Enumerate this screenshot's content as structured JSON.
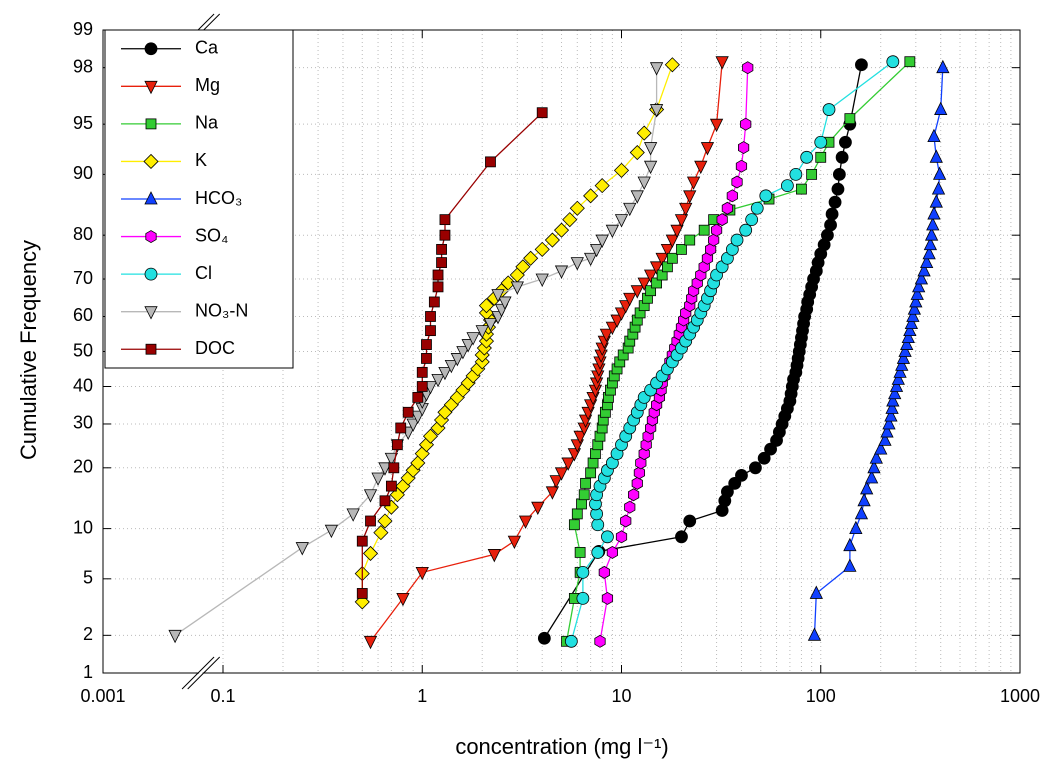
{
  "chart_data": {
    "type": "probability",
    "x_label": "concentration (mg l⁻¹)",
    "y_label": "Cumulative Frequency",
    "xlim": [
      0.001,
      1000
    ],
    "xbreak": [
      0.003,
      0.08
    ],
    "xscale": "log",
    "xticks": [
      0.001,
      0.1,
      1,
      10,
      100,
      1000
    ],
    "ylim": [
      1,
      99
    ],
    "yscale": "probability",
    "yticks": [
      1,
      2,
      5,
      10,
      20,
      30,
      40,
      50,
      60,
      70,
      80,
      90,
      95,
      98,
      99
    ],
    "grid": true,
    "legend": "upper left",
    "series": [
      {
        "name": "Ca",
        "color": "#000000",
        "marker": "circle",
        "x": [
          4.1,
          7.7,
          20,
          22,
          32,
          33,
          34,
          37,
          40,
          47,
          52,
          56,
          60,
          62,
          64,
          66,
          68,
          70,
          71,
          72,
          73,
          75,
          76,
          77,
          78,
          79,
          80,
          81,
          82,
          83,
          85,
          86,
          88,
          90,
          92,
          95,
          97,
          100,
          104,
          108,
          112,
          114,
          118,
          122,
          124,
          128,
          133,
          140,
          160
        ],
        "values": [
          1.9,
          7.4,
          9,
          11,
          12.5,
          14,
          15.5,
          17,
          18.5,
          20,
          22,
          24,
          26,
          28,
          30,
          32,
          34,
          36,
          38,
          40,
          42,
          44,
          46,
          48,
          50,
          52,
          54,
          56,
          58,
          60,
          62,
          64,
          66,
          68,
          70,
          72,
          74,
          76,
          78,
          80,
          82,
          84,
          86,
          88,
          90,
          92,
          93.5,
          95,
          98.1
        ]
      },
      {
        "name": "Mg",
        "color": "#e8200c",
        "marker": "triangle-down",
        "x": [
          0.55,
          0.8,
          1.0,
          2.3,
          2.9,
          3.3,
          3.8,
          4.5,
          4.7,
          5.0,
          5.4,
          5.8,
          6.0,
          6.2,
          6.5,
          6.6,
          6.8,
          7.0,
          7.2,
          7.4,
          7.5,
          7.6,
          7.7,
          7.8,
          7.9,
          8.0,
          8.2,
          8.4,
          9.0,
          9.5,
          10.0,
          10.5,
          11,
          12,
          13,
          14,
          15,
          16,
          17,
          18,
          19,
          20,
          21,
          22,
          23,
          25,
          27,
          30,
          32
        ],
        "values": [
          1.8,
          3.7,
          5.5,
          7.1,
          8.5,
          11,
          13,
          15.5,
          17.5,
          19,
          21,
          23,
          25,
          27,
          29,
          31,
          33,
          35,
          37,
          39,
          41,
          43,
          45,
          47,
          49,
          51,
          53,
          55,
          57,
          59,
          61,
          63,
          65,
          67,
          69,
          71,
          73,
          75,
          77,
          79,
          81,
          83,
          85,
          87,
          89,
          91,
          93,
          95,
          98.2
        ]
      },
      {
        "name": "Na",
        "color": "#33cc33",
        "marker": "square",
        "x": [
          5.3,
          5.8,
          6.2,
          6.2,
          5.8,
          6.0,
          6.3,
          6.5,
          6.6,
          7.0,
          7.2,
          7.4,
          7.6,
          7.8,
          8.0,
          8.1,
          8.3,
          8.5,
          8.6,
          8.8,
          9.0,
          9.2,
          9.5,
          9.8,
          10.2,
          10.8,
          11,
          11.4,
          11.7,
          12,
          12.4,
          13,
          13.5,
          14,
          15,
          16,
          17,
          18,
          20,
          22,
          26,
          29,
          35,
          55,
          80,
          90,
          100,
          110,
          140,
          280
        ],
        "values": [
          1.8,
          3.7,
          5.5,
          7.3,
          10.5,
          12,
          13.5,
          15,
          17,
          19,
          21,
          23,
          25,
          27,
          29,
          31,
          33,
          35,
          37,
          39,
          41,
          43,
          45,
          47,
          49,
          51,
          53,
          55,
          57,
          59,
          61,
          63,
          65,
          67,
          69,
          71,
          73,
          75,
          77,
          79,
          81,
          83,
          84.7,
          86.5,
          88,
          90,
          92,
          93.5,
          95.4,
          98.2
        ]
      },
      {
        "name": "K",
        "color": "#ffee00",
        "marker": "diamond",
        "x": [
          0.5,
          0.5,
          0.55,
          0.62,
          0.65,
          0.7,
          0.75,
          0.8,
          0.85,
          0.9,
          0.95,
          1.0,
          1.05,
          1.1,
          1.2,
          1.25,
          1.3,
          1.4,
          1.5,
          1.6,
          1.7,
          1.8,
          1.9,
          2.0,
          2.0,
          2.05,
          2.1,
          2.1,
          2.15,
          2.2,
          2.1,
          2.1,
          2.3,
          2.5,
          2.7,
          3.0,
          3.2,
          3.5,
          4.0,
          4.5,
          5.0,
          5.5,
          6.0,
          7.0,
          8.0,
          10,
          12,
          13,
          15,
          18
        ],
        "values": [
          3.5,
          5.4,
          7.2,
          9.5,
          11,
          13,
          15,
          16.5,
          18,
          19.5,
          21,
          23,
          25,
          27,
          29,
          31,
          33,
          35,
          37,
          39,
          41,
          43,
          45,
          47,
          49,
          51,
          53,
          55,
          57,
          59,
          61,
          63,
          65,
          67,
          69,
          71,
          73,
          75,
          77,
          79,
          81,
          83,
          85,
          87,
          88.5,
          90.5,
          92.5,
          94.3,
          96,
          98.1
        ]
      },
      {
        "name": "HCO₃",
        "color": "#1040ff",
        "marker": "triangle-up",
        "x": [
          93,
          95,
          140,
          140,
          150,
          160,
          165,
          170,
          180,
          185,
          190,
          200,
          210,
          215,
          220,
          225,
          228,
          230,
          235,
          240,
          245,
          250,
          255,
          260,
          265,
          270,
          275,
          280,
          285,
          290,
          295,
          300,
          305,
          310,
          320,
          330,
          340,
          350,
          355,
          360,
          365,
          370,
          380,
          390,
          395,
          380,
          370,
          400,
          410
        ],
        "values": [
          2,
          4,
          6,
          8,
          10,
          12,
          14,
          16,
          18,
          20,
          22,
          24,
          26,
          28,
          30,
          32,
          34,
          36,
          38,
          40,
          42,
          44,
          46,
          48,
          50,
          52,
          54,
          56,
          58,
          60,
          62,
          64,
          66,
          68,
          70,
          72,
          74,
          76,
          78,
          80,
          82,
          84,
          86,
          88,
          90,
          92,
          94,
          96,
          98
        ]
      },
      {
        "name": "SO₄",
        "color": "#ff00ff",
        "marker": "hexagon",
        "x": [
          7.8,
          8.5,
          8.2,
          9.0,
          10,
          10.5,
          11,
          11.5,
          12,
          12.3,
          12.5,
          13,
          13.3,
          13.6,
          14,
          14.3,
          14.6,
          15,
          15.5,
          15.8,
          16,
          16.5,
          17,
          17.5,
          18,
          18.5,
          19,
          19.5,
          20,
          20.5,
          21,
          22,
          22.5,
          23,
          24,
          25,
          26,
          27,
          28,
          29,
          30,
          32,
          34,
          36,
          38,
          40,
          41,
          42,
          43
        ],
        "values": [
          1.8,
          3.7,
          5.5,
          7.3,
          9,
          11,
          13,
          15,
          17,
          19,
          21,
          23,
          25,
          27,
          29,
          31,
          33,
          35,
          37,
          39,
          41,
          43,
          45,
          47,
          49,
          51,
          53,
          55,
          57,
          59,
          61,
          63,
          65,
          67,
          69,
          71,
          73,
          75,
          77,
          79,
          81,
          83,
          85,
          87,
          89,
          91,
          93,
          95,
          98
        ]
      },
      {
        "name": "Cl",
        "color": "#22e0e0",
        "marker": "circle",
        "x": [
          5.6,
          6.4,
          6.4,
          7.6,
          8.5,
          7.6,
          7.5,
          7.4,
          7.5,
          7.8,
          8.2,
          8.5,
          9,
          9.5,
          10,
          10.5,
          11,
          11.5,
          12,
          12.5,
          13,
          14,
          15,
          16,
          17,
          18,
          19,
          20,
          21,
          22,
          23,
          24,
          25,
          26,
          27,
          28,
          29,
          30,
          32,
          34,
          36,
          38,
          42,
          45,
          48,
          53,
          68,
          75,
          85,
          100,
          110,
          230
        ],
        "values": [
          1.8,
          3.7,
          5.5,
          7.3,
          9,
          10.5,
          12,
          13.5,
          15,
          16.5,
          18,
          19.5,
          21,
          23,
          25,
          27,
          29,
          31,
          33,
          35,
          37,
          39,
          41,
          43,
          45,
          47,
          49,
          51,
          53,
          55,
          57,
          59,
          61,
          63,
          65,
          67,
          69,
          71,
          73,
          75,
          77,
          79,
          81,
          83,
          85,
          87,
          88.5,
          90,
          92,
          93.5,
          96,
          98.2
        ]
      },
      {
        "name": "NO₃-N",
        "color": "#b8b8b8",
        "marker": "triangle-down",
        "x": [
          0.0023,
          0.25,
          0.35,
          0.45,
          0.55,
          0.6,
          0.65,
          0.7,
          0.75,
          0.85,
          0.9,
          0.95,
          1.0,
          1.0,
          1.05,
          1.1,
          1.2,
          1.3,
          1.4,
          1.5,
          1.6,
          1.7,
          1.8,
          2.0,
          2.2,
          2.4,
          2.5,
          2.6,
          2.4,
          3.0,
          4.0,
          5.0,
          6,
          7,
          7.5,
          8,
          9,
          10,
          11,
          12,
          13,
          14,
          14,
          15,
          15
        ],
        "values": [
          2,
          7.8,
          9.8,
          12,
          15,
          18,
          20,
          22,
          25,
          28,
          30,
          32,
          34,
          36,
          38,
          40,
          42,
          44,
          46,
          48,
          50,
          52,
          54,
          56,
          58,
          60,
          62,
          64,
          66,
          68,
          70,
          72,
          74,
          75,
          77,
          79,
          81,
          83,
          85,
          87,
          89,
          91,
          93,
          96,
          98
        ]
      },
      {
        "name": "DOC",
        "color": "#990000",
        "marker": "square",
        "x": [
          0.5,
          0.5,
          0.55,
          0.65,
          0.7,
          0.72,
          0.75,
          0.78,
          0.85,
          0.95,
          1.0,
          1.0,
          1.05,
          1.05,
          1.1,
          1.1,
          1.15,
          1.2,
          1.2,
          1.25,
          1.25,
          1.3,
          1.3,
          2.2,
          4.0
        ],
        "values": [
          4,
          8.5,
          11,
          14,
          16.5,
          20,
          25,
          29,
          33,
          37,
          40,
          44,
          48,
          52,
          56,
          60,
          64,
          68,
          71,
          74,
          77,
          80,
          83,
          91.5,
          95.8
        ]
      }
    ]
  }
}
